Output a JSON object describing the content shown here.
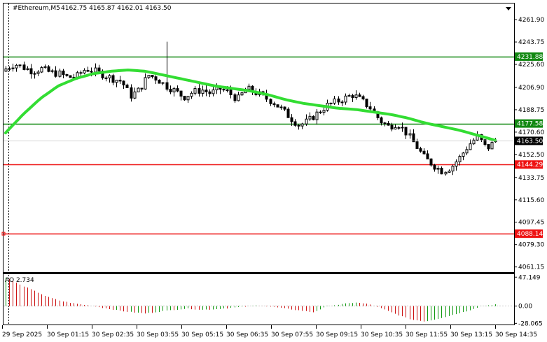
{
  "header": {
    "symbol_label": "#Ethereum,M5",
    "ohlc_text": "4162.75 4165.87 4162.01 4163.50"
  },
  "colors": {
    "background": "#ffffff",
    "frame": "#000000",
    "candle": "#000000",
    "ma": "#33dd33",
    "support_line": "#ee1111",
    "resistance_line": "#118811",
    "ao_up": "#119911",
    "ao_down": "#cc1111",
    "current_price_tag": "#000000"
  },
  "chart_data": [
    {
      "type": "candlestick",
      "name": "price",
      "title": "#Ethereum,M5",
      "ylim": [
        4057,
        4275
      ],
      "y_ticks": [
        4261.9,
        4243.75,
        4225.6,
        4206.9,
        4188.75,
        4170.6,
        4152.5,
        4133.75,
        4115.6,
        4097.45,
        4079.3,
        4061.15
      ],
      "x_tick_labels": [
        "29 Sep 2025",
        "30 Sep 01:15",
        "30 Sep 02:35",
        "30 Sep 03:55",
        "30 Sep 05:15",
        "30 Sep 06:35",
        "30 Sep 07:55",
        "30 Sep 09:15",
        "30 Sep 10:35",
        "30 Sep 11:55",
        "30 Sep 13:15",
        "30 Sep 14:35"
      ],
      "grid": false,
      "current_price": 4163.5,
      "ohlc_last": {
        "open": 4162.75,
        "high": 4165.87,
        "low": 4162.01,
        "close": 4163.5
      },
      "horizontal_levels": [
        {
          "value": 4231.88,
          "label": "4231.88",
          "color": "#118811"
        },
        {
          "value": 4177.58,
          "label": "4177.58",
          "color": "#118811"
        },
        {
          "value": 4144.29,
          "label": "4144.29",
          "color": "#ee1111"
        },
        {
          "value": 4088.14,
          "label": "4088.14",
          "color": "#ee1111"
        }
      ],
      "moving_average_color": "#33dd33",
      "close_anchors": [
        4222,
        4226,
        4223,
        4220,
        4222,
        4219,
        4218,
        4215,
        4216,
        4222,
        4220,
        4217,
        4214,
        4212,
        4200,
        4205,
        4217,
        4214,
        4208,
        4204,
        4199,
        4203,
        4205,
        4202,
        4206,
        4203,
        4197,
        4206,
        4203,
        4199,
        4195,
        4189,
        4182,
        4176,
        4180,
        4186,
        4192,
        4195,
        4198,
        4201,
        4196,
        4190,
        4180,
        4175,
        4178,
        4170,
        4160,
        4150,
        4144,
        4139,
        4142,
        4150,
        4160,
        4167,
        4157,
        4163.5
      ],
      "ma_anchors": [
        4170,
        4185,
        4198,
        4208,
        4214,
        4218,
        4220,
        4221,
        4220,
        4217,
        4214,
        4211,
        4208,
        4206,
        4204,
        4201,
        4197,
        4194,
        4192,
        4190,
        4189,
        4187,
        4185,
        4182,
        4178,
        4175,
        4172,
        4168,
        4164
      ]
    },
    {
      "type": "bar",
      "name": "AO",
      "title": "AO 2.734",
      "value_label": "2.734",
      "ylim": [
        -30,
        52
      ],
      "y_ticks": [
        47.149,
        0.0,
        -28.065
      ],
      "ao_anchors": [
        47,
        35,
        25,
        15,
        8,
        4,
        1,
        -3,
        -7,
        -10,
        -12,
        -9,
        -6,
        -4,
        -6,
        -5,
        -3,
        -1,
        1,
        -1,
        -4,
        -7,
        -10,
        0,
        3,
        6,
        3,
        -5,
        -14,
        -22,
        -25,
        -20,
        -14,
        -8,
        0,
        2.7
      ]
    }
  ]
}
